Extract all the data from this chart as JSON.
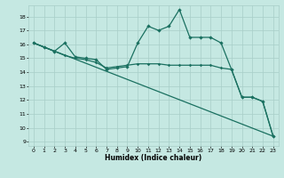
{
  "xlabel": "Humidex (Indice chaleur)",
  "bg_color": "#c5e8e2",
  "grid_color": "#a8cec8",
  "line_color": "#1a7060",
  "xlim": [
    -0.5,
    23.5
  ],
  "ylim": [
    8.7,
    18.8
  ],
  "yticks": [
    9,
    10,
    11,
    12,
    13,
    14,
    15,
    16,
    17,
    18
  ],
  "xticks": [
    0,
    1,
    2,
    3,
    4,
    5,
    6,
    7,
    8,
    9,
    10,
    11,
    12,
    13,
    14,
    15,
    16,
    17,
    18,
    19,
    20,
    21,
    22,
    23
  ],
  "series1_x": [
    0,
    1,
    2,
    3,
    4,
    5,
    6,
    7,
    8,
    9,
    10,
    11,
    12,
    13,
    14,
    15,
    16,
    17,
    18,
    19,
    20,
    21,
    22,
    23
  ],
  "series1_y": [
    16.1,
    15.8,
    15.5,
    16.1,
    15.1,
    15.0,
    14.9,
    14.2,
    14.3,
    14.4,
    16.1,
    17.3,
    17.0,
    17.3,
    18.5,
    16.5,
    16.5,
    16.5,
    16.1,
    14.2,
    12.2,
    12.2,
    11.9,
    9.4
  ],
  "series2_x": [
    0,
    1,
    2,
    3,
    4,
    5,
    6,
    7,
    8,
    9,
    10,
    11,
    12,
    13,
    14,
    15,
    16,
    17,
    18,
    19,
    20,
    21,
    22,
    23
  ],
  "series2_y": [
    16.1,
    15.8,
    15.5,
    15.2,
    15.0,
    14.9,
    14.7,
    14.3,
    14.4,
    14.5,
    14.6,
    14.6,
    14.6,
    14.5,
    14.5,
    14.5,
    14.5,
    14.5,
    14.3,
    14.2,
    12.2,
    12.2,
    11.9,
    9.4
  ],
  "series3_x": [
    0,
    23
  ],
  "series3_y": [
    16.1,
    9.4
  ]
}
